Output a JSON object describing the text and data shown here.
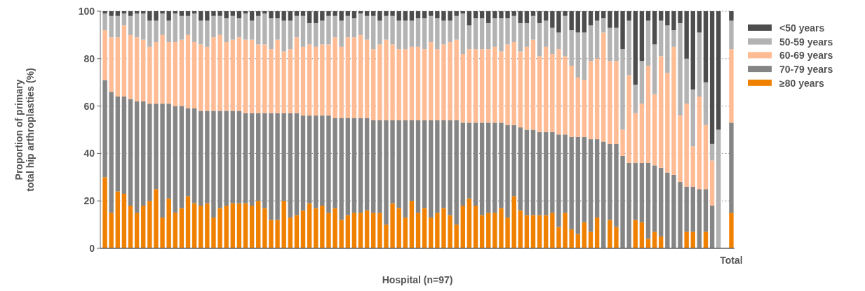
{
  "chart_data": {
    "type": "bar",
    "stacked": true,
    "xlabel": "Hospital (n=97)",
    "ylabel": "Proportion of primary\ntotal hip arthroplasties (%)",
    "categories": [
      null,
      null,
      null,
      null,
      null,
      null,
      null,
      null,
      null,
      null,
      null,
      null,
      null,
      null,
      null,
      null,
      null,
      null,
      null,
      null,
      null,
      null,
      null,
      null,
      null,
      null,
      null,
      null,
      null,
      null,
      null,
      null,
      null,
      null,
      null,
      null,
      null,
      null,
      null,
      null,
      null,
      null,
      null,
      null,
      null,
      null,
      null,
      null,
      null,
      null,
      null,
      null,
      null,
      null,
      null,
      null,
      null,
      null,
      null,
      null,
      null,
      null,
      null,
      null,
      null,
      null,
      null,
      null,
      null,
      null,
      null,
      null,
      null,
      null,
      null,
      null,
      null,
      null,
      null,
      null,
      null,
      null,
      null,
      null,
      null,
      null,
      null,
      null,
      null,
      null,
      null,
      null,
      null,
      null,
      null,
      null,
      null,
      null,
      "Total"
    ],
    "series": [
      {
        "name": "≥80 years",
        "color": "#f08000",
        "values": [
          30,
          15,
          24,
          23,
          18,
          15,
          18,
          20,
          25,
          13,
          21,
          15,
          17,
          22,
          19,
          18,
          19,
          13,
          17,
          18,
          19,
          19,
          19,
          18,
          20,
          17,
          12,
          12,
          20,
          13,
          14,
          16,
          19,
          17,
          18,
          15,
          17,
          12,
          14,
          15,
          15,
          16,
          15,
          15,
          10,
          19,
          17,
          13,
          20,
          15,
          17,
          13,
          15,
          17,
          14,
          10,
          18,
          21,
          18,
          14,
          15,
          15,
          17,
          13,
          22,
          16,
          14,
          14,
          14,
          14,
          15,
          9,
          15,
          8,
          6,
          11,
          7,
          13,
          0,
          12,
          9,
          0,
          0,
          12,
          11,
          4,
          7,
          5,
          0,
          0,
          0,
          7,
          7,
          0,
          7,
          0,
          0,
          null,
          15
        ]
      },
      {
        "name": "70-79 years",
        "color": "#858585",
        "values": [
          41,
          51,
          40,
          41,
          45,
          47,
          44,
          41,
          36,
          48,
          40,
          45,
          43,
          37,
          40,
          40,
          39,
          45,
          41,
          40,
          39,
          39,
          38,
          39,
          37,
          40,
          45,
          45,
          37,
          44,
          43,
          40,
          37,
          39,
          38,
          41,
          38,
          43,
          41,
          40,
          40,
          39,
          39,
          39,
          44,
          35,
          37,
          41,
          34,
          39,
          37,
          41,
          39,
          37,
          40,
          44,
          35,
          32,
          35,
          39,
          38,
          38,
          36,
          39,
          30,
          35,
          36,
          36,
          35,
          35,
          34,
          39,
          33,
          39,
          41,
          36,
          39,
          33,
          45,
          32,
          35,
          39,
          36,
          24,
          25,
          32,
          28,
          29,
          32,
          31,
          28,
          19,
          19,
          25,
          18,
          18,
          0,
          null,
          38
        ]
      },
      {
        "name": "60-69 years",
        "color": "#ffbb93",
        "values": [
          21,
          23,
          25,
          30,
          27,
          27,
          26,
          24,
          26,
          29,
          26,
          27,
          28,
          31,
          28,
          28,
          27,
          31,
          32,
          29,
          30,
          31,
          31,
          31,
          29,
          29,
          27,
          31,
          26,
          27,
          32,
          29,
          30,
          29,
          30,
          30,
          34,
          30,
          34,
          34,
          35,
          33,
          30,
          32,
          34,
          32,
          30,
          30,
          31,
          31,
          30,
          33,
          30,
          32,
          33,
          34,
          29,
          31,
          31,
          31,
          31,
          32,
          30,
          34,
          35,
          32,
          35,
          38,
          32,
          36,
          33,
          36,
          33,
          30,
          25,
          24,
          33,
          34,
          46,
          35,
          35,
          11,
          37,
          21,
          25,
          41,
          30,
          47,
          42,
          54,
          28,
          35,
          17,
          39,
          27,
          19,
          0,
          null,
          31
        ]
      },
      {
        "name": "50-59 years",
        "color": "#b3b3b3",
        "values": [
          7,
          9,
          9,
          5,
          8,
          10,
          11,
          11,
          9,
          9,
          9,
          12,
          10,
          8,
          12,
          10,
          11,
          9,
          8,
          10,
          10,
          8,
          11,
          8,
          12,
          13,
          13,
          9,
          13,
          12,
          9,
          13,
          9,
          10,
          10,
          12,
          9,
          11,
          9,
          8,
          9,
          10,
          14,
          10,
          10,
          12,
          12,
          12,
          11,
          12,
          13,
          11,
          13,
          10,
          9,
          10,
          17,
          10,
          13,
          13,
          11,
          12,
          14,
          11,
          11,
          12,
          10,
          10,
          14,
          11,
          11,
          7,
          17,
          15,
          19,
          20,
          15,
          16,
          6,
          14,
          14,
          34,
          23,
          12,
          18,
          19,
          21,
          15,
          20,
          7,
          39,
          19,
          24,
          27,
          18,
          7,
          50,
          null,
          12
        ]
      },
      {
        "name": "<50 years",
        "color": "#4d4d4d",
        "values": [
          1,
          2,
          2,
          1,
          2,
          1,
          1,
          4,
          4,
          1,
          4,
          1,
          2,
          2,
          1,
          4,
          4,
          2,
          2,
          3,
          2,
          3,
          1,
          4,
          2,
          1,
          3,
          3,
          4,
          4,
          2,
          2,
          5,
          5,
          4,
          2,
          2,
          4,
          2,
          3,
          1,
          2,
          2,
          4,
          2,
          2,
          4,
          4,
          4,
          3,
          3,
          2,
          3,
          4,
          4,
          2,
          1,
          6,
          3,
          3,
          5,
          3,
          3,
          3,
          2,
          5,
          5,
          2,
          5,
          4,
          7,
          9,
          2,
          8,
          9,
          9,
          6,
          4,
          3,
          7,
          7,
          16,
          4,
          31,
          21,
          4,
          14,
          4,
          6,
          8,
          5,
          20,
          33,
          9,
          30,
          56,
          50,
          null,
          4
        ]
      }
    ],
    "ylim": [
      0,
      100
    ],
    "yticks": [
      0,
      20,
      40,
      60,
      80,
      100
    ],
    "grid": "y",
    "legend": "right"
  }
}
